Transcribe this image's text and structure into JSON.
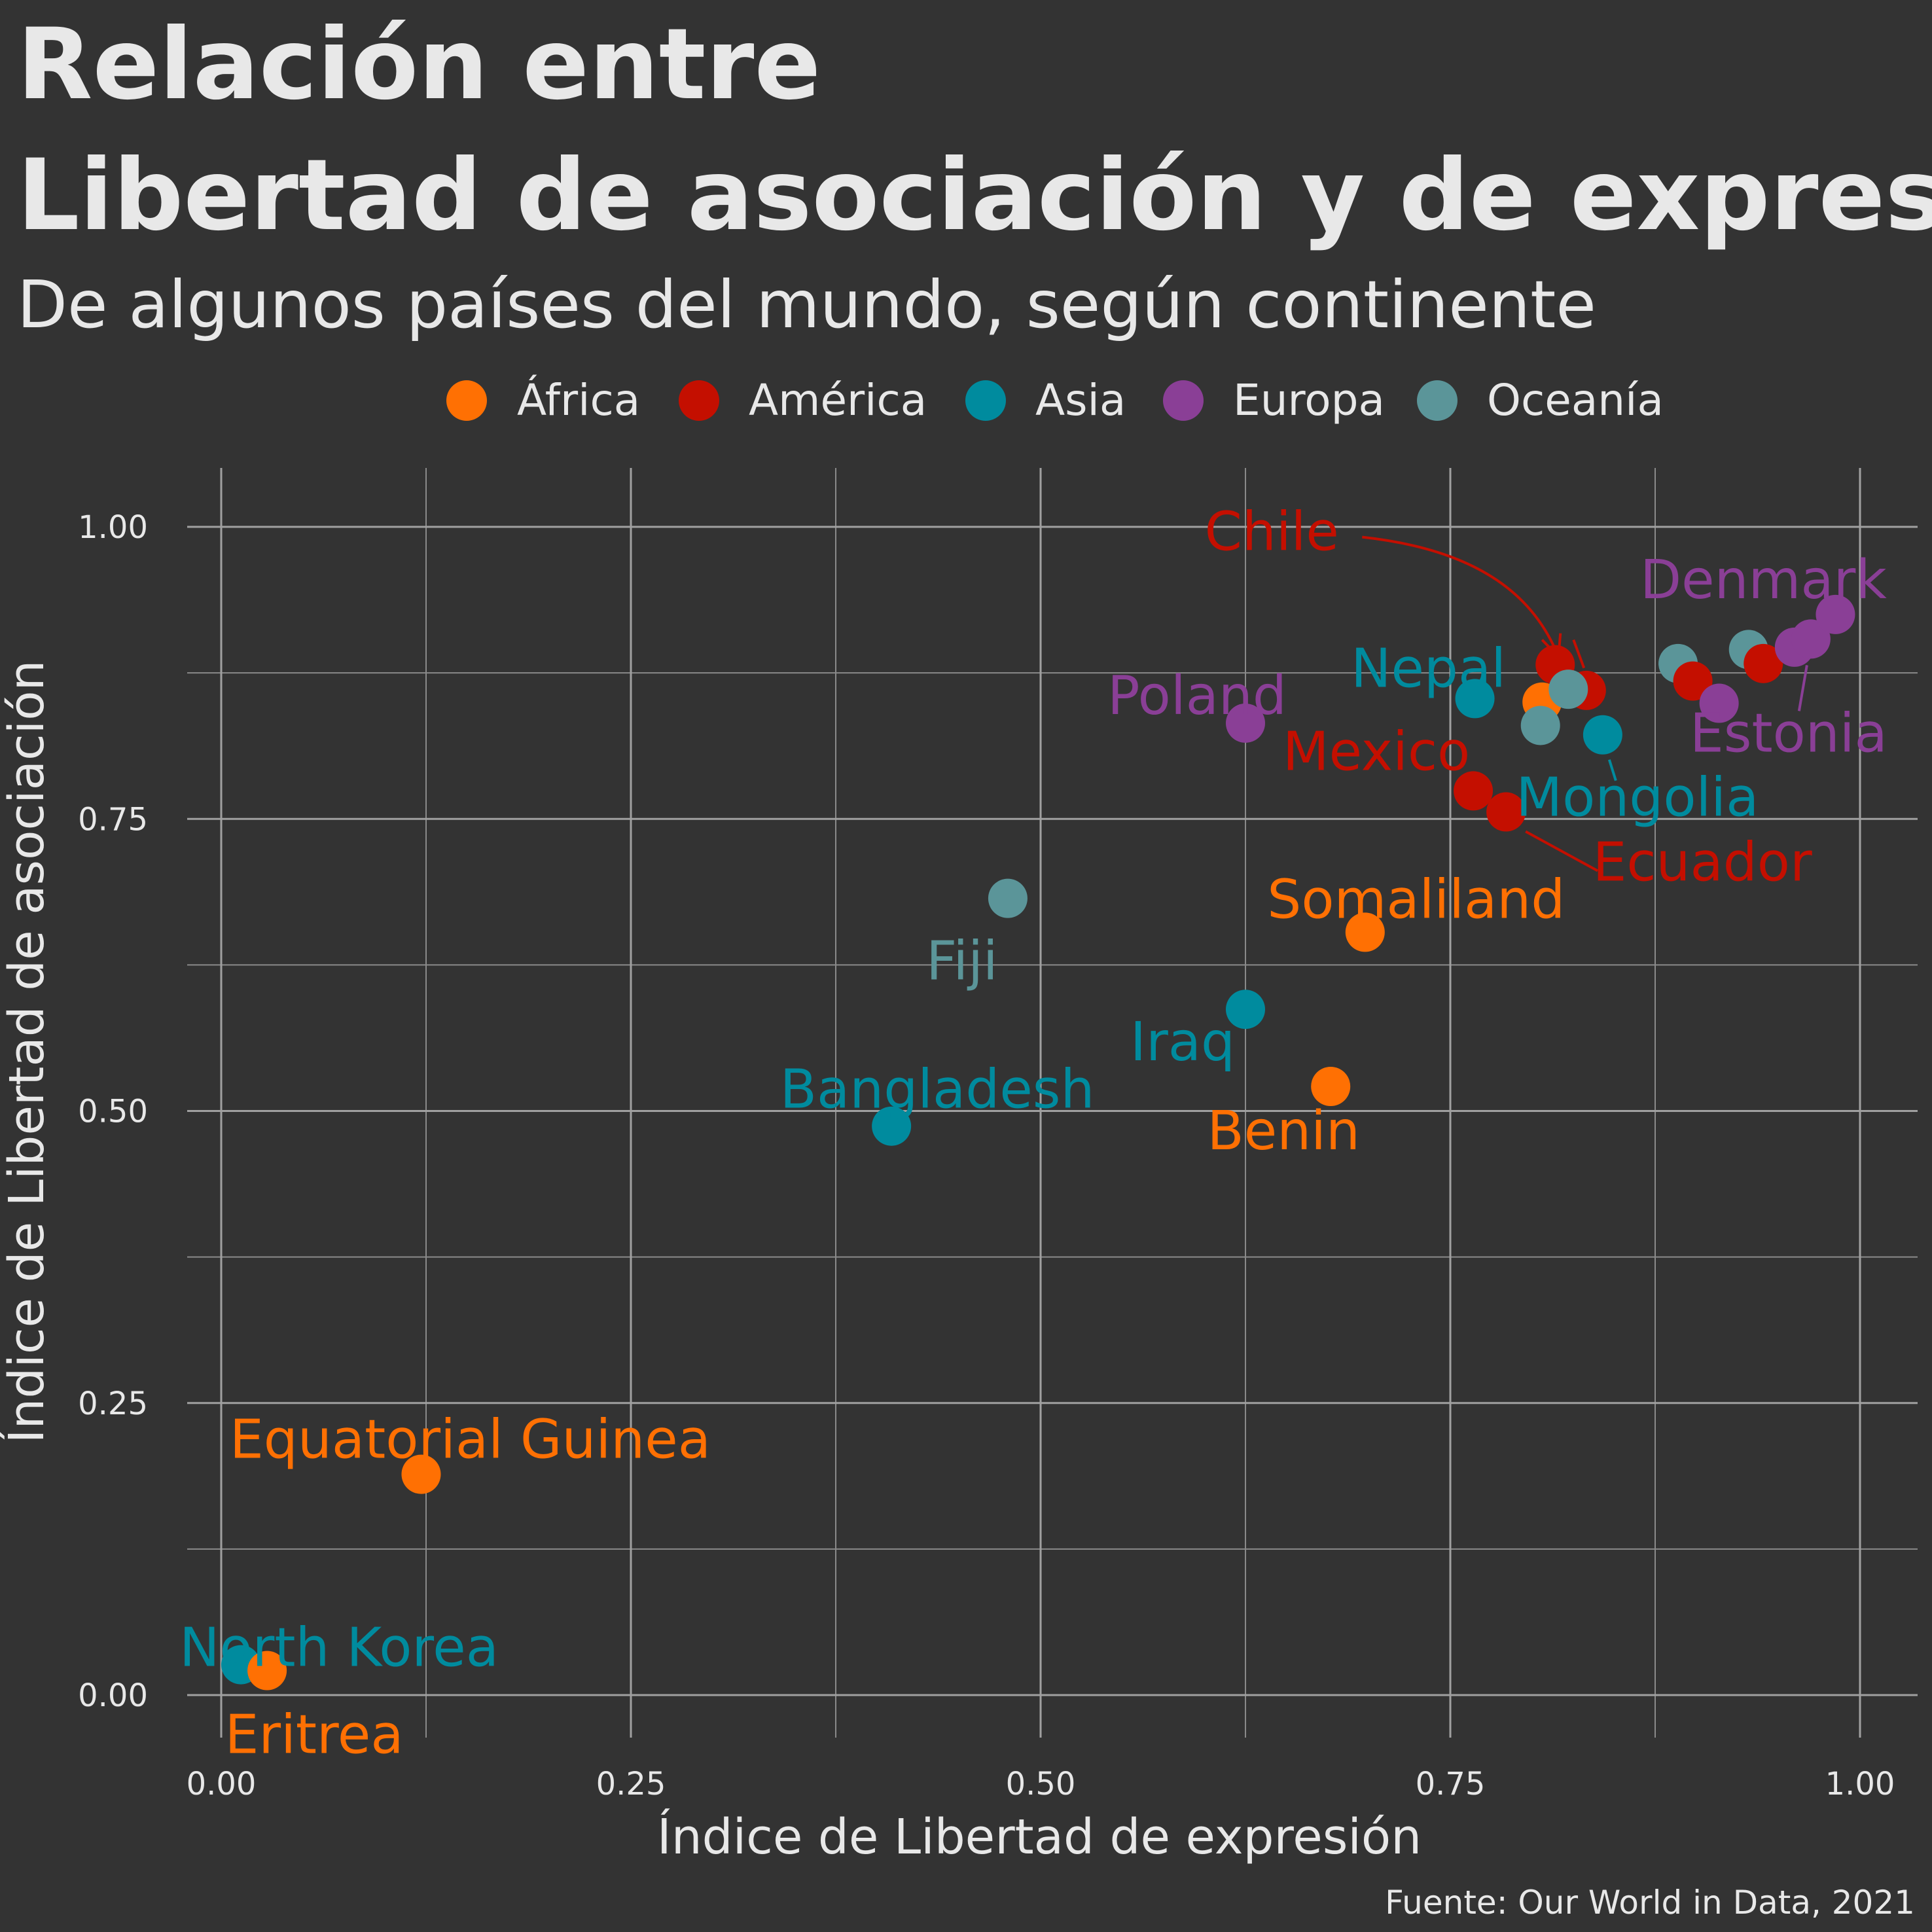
{
  "chart_data": {
    "type": "scatter",
    "title_line1": "Relación entre",
    "title_line2": "Libertad de asociación y de expresión",
    "subtitle": "De algunos países del mundo, según continente",
    "xlabel": "Índice de Libertad de expresión",
    "ylabel": "Índice de Libertad de asociación",
    "caption": "Fuente: Our World in Data, 2021",
    "xlim": [
      0,
      1
    ],
    "ylim": [
      0,
      1
    ],
    "x_ticks": [
      "0.00",
      "0.25",
      "0.50",
      "0.75",
      "1.00"
    ],
    "y_ticks": [
      "0.00",
      "0.25",
      "0.50",
      "0.75",
      "1.00"
    ],
    "grid": true,
    "legend_position": "top",
    "legend": [
      {
        "name": "África",
        "color": "#ff7003"
      },
      {
        "name": "América",
        "color": "#c40f00"
      },
      {
        "name": "Asia",
        "color": "#008b9e"
      },
      {
        "name": "Europa",
        "color": "#8a3f96"
      },
      {
        "name": "Oceanía",
        "color": "#5b9599"
      }
    ],
    "points": [
      {
        "x": 0.012,
        "y": 0.026,
        "group": "Asia",
        "label": "North Korea"
      },
      {
        "x": 0.028,
        "y": 0.021,
        "group": "África",
        "label": "Eritrea"
      },
      {
        "x": 0.122,
        "y": 0.189,
        "group": "África",
        "label": "Equatorial Guinea"
      },
      {
        "x": 0.409,
        "y": 0.487,
        "group": "Asia",
        "label": "Bangladesh"
      },
      {
        "x": 0.48,
        "y": 0.682,
        "group": "Oceanía",
        "label": "Fiji"
      },
      {
        "x": 0.625,
        "y": 0.587,
        "group": "Asia",
        "label": "Iraq"
      },
      {
        "x": 0.625,
        "y": 0.832,
        "group": "Europa",
        "label": "Poland"
      },
      {
        "x": 0.677,
        "y": 0.521,
        "group": "África",
        "label": "Benin"
      },
      {
        "x": 0.698,
        "y": 0.653,
        "group": "África",
        "label": "Somaliland"
      },
      {
        "x": 0.765,
        "y": 0.853,
        "group": "Asia",
        "label": "Nepal"
      },
      {
        "x": 0.764,
        "y": 0.774,
        "group": "América",
        "label": "Mexico"
      },
      {
        "x": 0.784,
        "y": 0.756,
        "group": "América",
        "label": "Ecuador"
      },
      {
        "x": 0.806,
        "y": 0.85,
        "group": "África",
        "label": ""
      },
      {
        "x": 0.805,
        "y": 0.83,
        "group": "Oceanía",
        "label": ""
      },
      {
        "x": 0.814,
        "y": 0.882,
        "group": "América",
        "label": "Chile"
      },
      {
        "x": 0.833,
        "y": 0.86,
        "group": "América",
        "label": ""
      },
      {
        "x": 0.822,
        "y": 0.861,
        "group": "Oceanía",
        "label": ""
      },
      {
        "x": 0.843,
        "y": 0.822,
        "group": "Asia",
        "label": "Mongolia"
      },
      {
        "x": 0.889,
        "y": 0.883,
        "group": "Oceanía",
        "label": ""
      },
      {
        "x": 0.898,
        "y": 0.868,
        "group": "América",
        "label": ""
      },
      {
        "x": 0.914,
        "y": 0.849,
        "group": "Europa",
        "label": ""
      },
      {
        "x": 0.932,
        "y": 0.895,
        "group": "Oceanía",
        "label": ""
      },
      {
        "x": 0.941,
        "y": 0.883,
        "group": "América",
        "label": ""
      },
      {
        "x": 0.96,
        "y": 0.897,
        "group": "Europa",
        "label": ""
      },
      {
        "x": 0.97,
        "y": 0.904,
        "group": "Europa",
        "label": "Estonia"
      },
      {
        "x": 0.985,
        "y": 0.925,
        "group": "Europa",
        "label": "Denmark"
      }
    ]
  }
}
